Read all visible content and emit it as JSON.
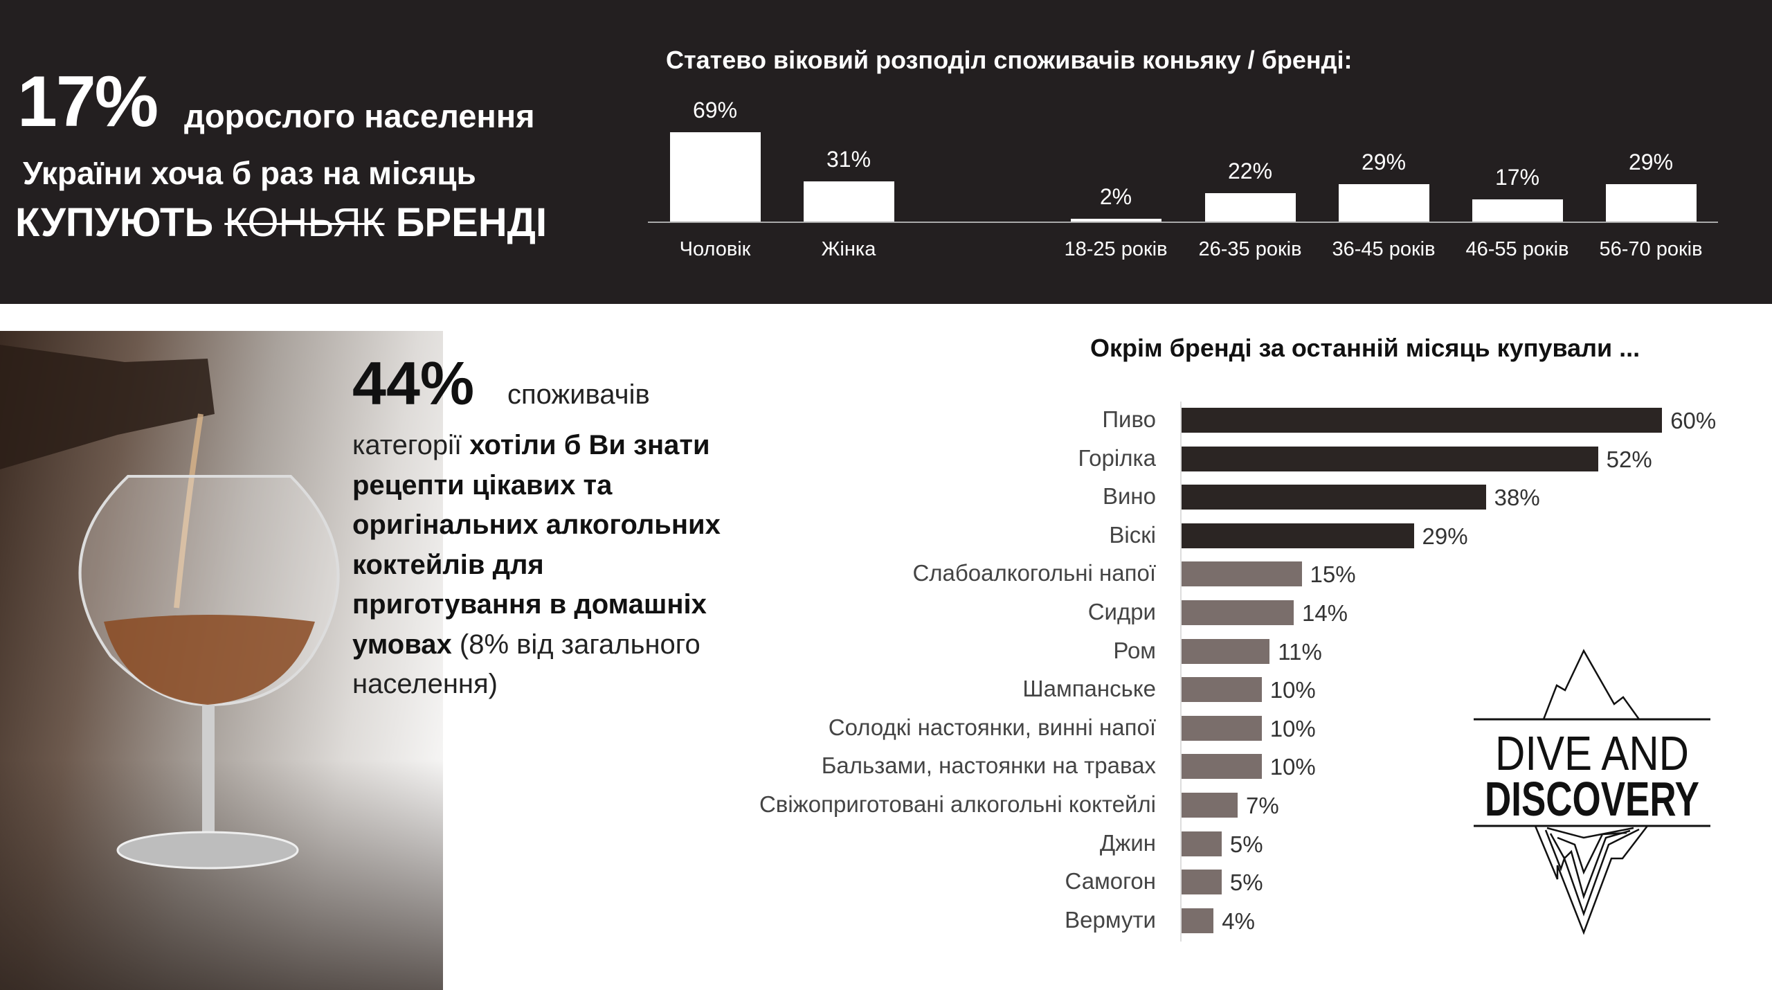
{
  "headline": {
    "percent": "17%",
    "line1": "дорослого населення",
    "line2": "України хоча б раз на місяць",
    "line3_prefix": "КУПУЮТЬ",
    "line3_struck": "КОНЬЯК",
    "line3_suffix": "БРЕНДІ"
  },
  "insight": {
    "percent": "44%",
    "word": "споживачів",
    "text_plain_1": "категорії ",
    "text_bold": "хотіли б Ви знати рецепти цікавих та оригінальних алкогольних коктейлів для приготування в домашніх умовах",
    "text_plain_2": " (8% від загального населення)"
  },
  "logo": {
    "line1": "DIVE AND",
    "line2": "DISCOVERY"
  },
  "colors": {
    "top_band": "#231f20",
    "bar_dark": "#2b2523",
    "bar_light": "#7a6e6b",
    "top_bars": "#ffffff"
  },
  "chart_data": [
    {
      "type": "bar",
      "title": "Статево віковий розподіл споживачів коньяку / бренді:",
      "categories": [
        "Чоловік",
        "Жінка",
        "18-25 років",
        "26-35 років",
        "36-45 років",
        "46-55 років",
        "56-70 років"
      ],
      "values": [
        69,
        31,
        2,
        22,
        29,
        17,
        29
      ],
      "data_labels": [
        "69%",
        "31%",
        "2%",
        "22%",
        "29%",
        "17%",
        "29%"
      ],
      "unit": "%",
      "grid": false
    },
    {
      "type": "bar",
      "orientation": "horizontal",
      "title": "Окрім бренді за останній місяць купували ...",
      "categories": [
        "Пиво",
        "Горілка",
        "Вино",
        "Віскі",
        "Слабоалкогольні напої",
        "Сидри",
        "Ром",
        "Шампанське",
        "Солодкі настоянки, винні напої",
        "Бальзами, настоянки на травах",
        "Свіжоприготовані алкогольні коктейлі",
        "Джин",
        "Самогон",
        "Вермути"
      ],
      "values": [
        60,
        52,
        38,
        29,
        15,
        14,
        11,
        10,
        10,
        10,
        7,
        5,
        5,
        4
      ],
      "data_labels": [
        "60%",
        "52%",
        "38%",
        "29%",
        "15%",
        "14%",
        "11%",
        "10%",
        "10%",
        "10%",
        "7%",
        "5%",
        "5%",
        "4%"
      ],
      "highlight_top": 4,
      "unit": "%",
      "grid": false
    }
  ]
}
